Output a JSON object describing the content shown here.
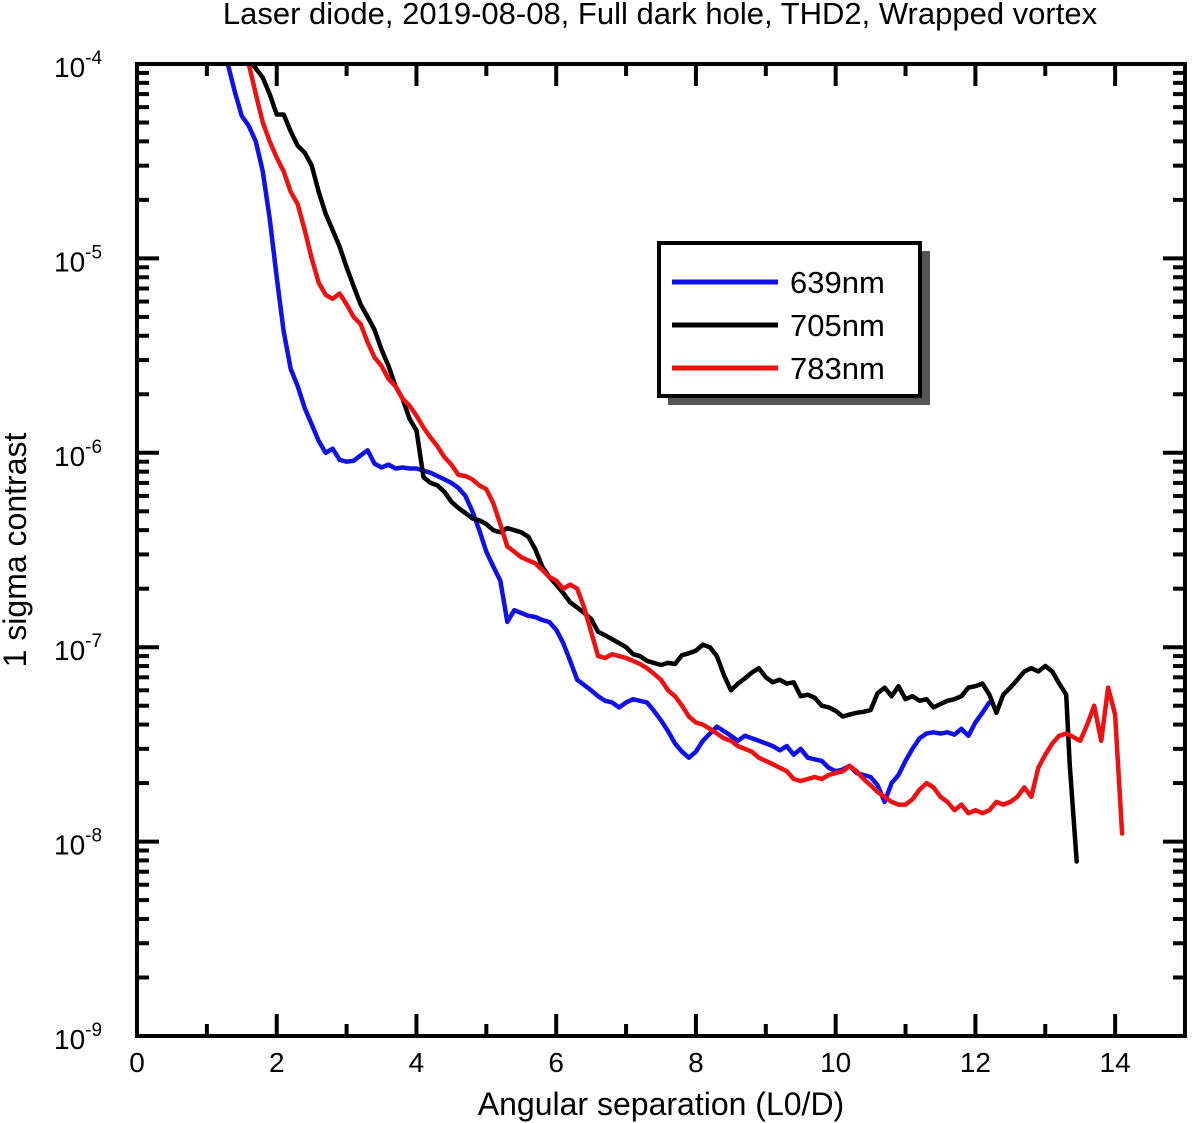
{
  "chart_data": {
    "type": "line",
    "title": "Laser diode, 2019-08-08, Full dark hole, THD2, Wrapped vortex",
    "xlabel": "Angular separation (L0/D)",
    "ylabel": "1 sigma contrast",
    "xlim": [
      0,
      15
    ],
    "ylim": [
      1e-09,
      0.0001
    ],
    "yscale": "log",
    "x_ticks": [
      0,
      2,
      4,
      6,
      8,
      10,
      12,
      14
    ],
    "x_tick_labels": [
      "0",
      "2",
      "4",
      "6",
      "8",
      "10",
      "12",
      "14"
    ],
    "y_ticks": [
      {
        "value": 0.0001,
        "base": "10",
        "exp": "-4"
      },
      {
        "value": 1e-05,
        "base": "10",
        "exp": "-5"
      },
      {
        "value": 1e-06,
        "base": "10",
        "exp": "-6"
      },
      {
        "value": 1e-07,
        "base": "10",
        "exp": "-7"
      },
      {
        "value": 1e-08,
        "base": "10",
        "exp": "-8"
      },
      {
        "value": 1e-09,
        "base": "10",
        "exp": "-9"
      }
    ],
    "legend_position": "upper-right",
    "series": [
      {
        "name": "639nm",
        "color": "#1010e8",
        "x": [
          1.3,
          1.4,
          1.5,
          1.6,
          1.7,
          1.8,
          1.9,
          2.0,
          2.1,
          2.2,
          2.3,
          2.4,
          2.5,
          2.6,
          2.7,
          2.8,
          2.9,
          3.0,
          3.1,
          3.2,
          3.3,
          3.4,
          3.5,
          3.6,
          3.7,
          3.8,
          3.9,
          4.0,
          4.1,
          4.2,
          4.3,
          4.4,
          4.5,
          4.6,
          4.7,
          4.8,
          4.9,
          5.0,
          5.1,
          5.2,
          5.3,
          5.4,
          5.5,
          5.6,
          5.7,
          5.8,
          5.9,
          6.0,
          6.1,
          6.2,
          6.3,
          6.4,
          6.5,
          6.6,
          6.7,
          6.8,
          6.9,
          7.0,
          7.1,
          7.2,
          7.3,
          7.4,
          7.5,
          7.6,
          7.7,
          7.8,
          7.9,
          8.0,
          8.1,
          8.2,
          8.3,
          8.4,
          8.5,
          8.6,
          8.7,
          8.8,
          8.9,
          9.0,
          9.1,
          9.2,
          9.3,
          9.4,
          9.5,
          9.6,
          9.7,
          9.8,
          9.9,
          10.0,
          10.1,
          10.2,
          10.3,
          10.4,
          10.5,
          10.6,
          10.7,
          10.8,
          10.9,
          11.0,
          11.1,
          11.2,
          11.3,
          11.4,
          11.5,
          11.6,
          11.7,
          11.8,
          11.9,
          12.0,
          12.1,
          12.2
        ],
        "values": [
          0.0001,
          7.2e-05,
          5.4e-05,
          4.8e-05,
          4e-05,
          2.8e-05,
          1.6e-05,
          8e-06,
          4.2e-06,
          2.7e-06,
          2.2e-06,
          1.7e-06,
          1.4e-06,
          1.15e-06,
          1e-06,
          1.05e-06,
          9.2e-07,
          9e-07,
          9.1e-07,
          9.7e-07,
          1.03e-06,
          8.8e-07,
          8.4e-07,
          8.7e-07,
          8.3e-07,
          8.4e-07,
          8.3e-07,
          8.3e-07,
          8.1e-07,
          7.9e-07,
          7.6e-07,
          7.3e-07,
          7e-07,
          6.6e-07,
          6e-07,
          5e-07,
          4e-07,
          3.1e-07,
          2.6e-07,
          2.2e-07,
          1.35e-07,
          1.55e-07,
          1.5e-07,
          1.45e-07,
          1.43e-07,
          1.38e-07,
          1.35e-07,
          1.23e-07,
          1.05e-07,
          8.5e-08,
          6.8e-08,
          6.4e-08,
          6e-08,
          5.6e-08,
          5.3e-08,
          5.2e-08,
          4.9e-08,
          5.2e-08,
          5.4e-08,
          5.3e-08,
          5.2e-08,
          4.7e-08,
          4.2e-08,
          3.7e-08,
          3.2e-08,
          2.9e-08,
          2.7e-08,
          2.9e-08,
          3.3e-08,
          3.6e-08,
          3.9e-08,
          3.7e-08,
          3.5e-08,
          3.3e-08,
          3.5e-08,
          3.4e-08,
          3.3e-08,
          3.2e-08,
          3.1e-08,
          2.95e-08,
          3.1e-08,
          2.8e-08,
          3e-08,
          2.7e-08,
          2.65e-08,
          2.6e-08,
          2.4e-08,
          2.3e-08,
          2.35e-08,
          2.45e-08,
          2.25e-08,
          2.2e-08,
          2.15e-08,
          1.95e-08,
          1.6e-08,
          2e-08,
          2.2e-08,
          2.6e-08,
          3e-08,
          3.4e-08,
          3.6e-08,
          3.65e-08,
          3.6e-08,
          3.65e-08,
          3.55e-08,
          3.8e-08,
          3.5e-08,
          4.1e-08,
          4.6e-08,
          5.2e-08
        ]
      },
      {
        "name": "705nm",
        "color": "#000000",
        "x": [
          1.65,
          1.7,
          1.8,
          1.9,
          2.0,
          2.1,
          2.2,
          2.3,
          2.4,
          2.5,
          2.6,
          2.7,
          2.8,
          2.9,
          3.0,
          3.1,
          3.2,
          3.3,
          3.4,
          3.5,
          3.6,
          3.7,
          3.8,
          3.9,
          4.0,
          4.1,
          4.2,
          4.3,
          4.4,
          4.5,
          4.6,
          4.7,
          4.8,
          4.9,
          5.0,
          5.1,
          5.2,
          5.3,
          5.4,
          5.5,
          5.6,
          5.7,
          5.8,
          5.9,
          6.0,
          6.1,
          6.2,
          6.3,
          6.4,
          6.5,
          6.6,
          6.7,
          6.8,
          6.9,
          7.0,
          7.1,
          7.2,
          7.3,
          7.4,
          7.5,
          7.6,
          7.7,
          7.8,
          7.9,
          8.0,
          8.1,
          8.2,
          8.3,
          8.4,
          8.5,
          8.6,
          8.7,
          8.8,
          8.9,
          9.0,
          9.1,
          9.2,
          9.3,
          9.4,
          9.5,
          9.6,
          9.7,
          9.8,
          9.9,
          10.0,
          10.1,
          10.2,
          10.3,
          10.4,
          10.5,
          10.6,
          10.7,
          10.8,
          10.9,
          11.0,
          11.1,
          11.2,
          11.3,
          11.4,
          11.5,
          11.6,
          11.7,
          11.8,
          11.9,
          12.0,
          12.1,
          12.2,
          12.3,
          12.4,
          12.5,
          12.6,
          12.7,
          12.8,
          12.9,
          13.0,
          13.1,
          13.2,
          13.3,
          13.35,
          13.45
        ],
        "values": [
          0.0001,
          9.5e-05,
          8.5e-05,
          7e-05,
          5.5e-05,
          5.5e-05,
          4.5e-05,
          3.8e-05,
          3.5e-05,
          3e-05,
          2.2e-05,
          1.7e-05,
          1.4e-05,
          1.15e-05,
          9e-06,
          7.2e-06,
          5.8e-06,
          5e-06,
          4.3e-06,
          3.4e-06,
          2.8e-06,
          2.2e-06,
          1.9e-06,
          1.5e-06,
          1.3e-06,
          7.5e-07,
          7e-07,
          6.8e-07,
          6.3e-07,
          5.6e-07,
          5.2e-07,
          4.9e-07,
          4.6e-07,
          4.5e-07,
          4.3e-07,
          4e-07,
          3.9e-07,
          4.1e-07,
          4e-07,
          3.9e-07,
          3.7e-07,
          3.2e-07,
          2.6e-07,
          2.3e-07,
          2.1e-07,
          1.9e-07,
          1.7e-07,
          1.6e-07,
          1.5e-07,
          1.4e-07,
          1.2e-07,
          1.15e-07,
          1.1e-07,
          1.05e-07,
          1e-07,
          9.2e-08,
          9e-08,
          8.5e-08,
          8.3e-08,
          8.1e-08,
          8.3e-08,
          8.2e-08,
          9.1e-08,
          9.3e-08,
          9.6e-08,
          1.03e-07,
          1e-07,
          9e-08,
          7.2e-08,
          6e-08,
          6.5e-08,
          6.9e-08,
          7.4e-08,
          7.8e-08,
          7e-08,
          6.6e-08,
          6.8e-08,
          6.5e-08,
          6.6e-08,
          5.6e-08,
          5.7e-08,
          5.5e-08,
          5e-08,
          4.9e-08,
          4.7e-08,
          4.4e-08,
          4.5e-08,
          4.6e-08,
          4.65e-08,
          4.75e-08,
          5.8e-08,
          6.2e-08,
          5.6e-08,
          6.3e-08,
          5.4e-08,
          5.6e-08,
          5.3e-08,
          5.4e-08,
          4.9e-08,
          5.1e-08,
          5.3e-08,
          5.4e-08,
          5.6e-08,
          6.2e-08,
          6.3e-08,
          6.5e-08,
          5.7e-08,
          4.6e-08,
          5.7e-08,
          6.2e-08,
          6.8e-08,
          7.5e-08,
          7.8e-08,
          7.5e-08,
          8e-08,
          7.5e-08,
          6.5e-08,
          5.7e-08,
          2.5e-08,
          7.9e-09
        ]
      },
      {
        "name": "783nm",
        "color": "#ee1111",
        "x": [
          1.6,
          1.7,
          1.8,
          1.9,
          2.0,
          2.1,
          2.2,
          2.3,
          2.4,
          2.5,
          2.6,
          2.7,
          2.8,
          2.9,
          3.0,
          3.1,
          3.2,
          3.3,
          3.4,
          3.5,
          3.6,
          3.7,
          3.8,
          3.9,
          4.0,
          4.1,
          4.2,
          4.3,
          4.4,
          4.5,
          4.6,
          4.7,
          4.8,
          4.9,
          5.0,
          5.1,
          5.2,
          5.3,
          5.4,
          5.5,
          5.6,
          5.7,
          5.8,
          5.9,
          6.0,
          6.1,
          6.2,
          6.3,
          6.4,
          6.5,
          6.6,
          6.7,
          6.8,
          6.9,
          7.0,
          7.1,
          7.2,
          7.3,
          7.4,
          7.5,
          7.6,
          7.7,
          7.8,
          7.9,
          8.0,
          8.1,
          8.2,
          8.3,
          8.4,
          8.5,
          8.6,
          8.7,
          8.8,
          8.9,
          9.0,
          9.1,
          9.2,
          9.3,
          9.4,
          9.5,
          9.6,
          9.7,
          9.8,
          9.9,
          10.0,
          10.1,
          10.2,
          10.3,
          10.4,
          10.5,
          10.6,
          10.7,
          10.8,
          10.9,
          11.0,
          11.1,
          11.2,
          11.3,
          11.4,
          11.5,
          11.6,
          11.7,
          11.8,
          11.9,
          12.0,
          12.1,
          12.2,
          12.3,
          12.4,
          12.5,
          12.6,
          12.7,
          12.8,
          12.9,
          13.0,
          13.1,
          13.2,
          13.3,
          13.4,
          13.5,
          13.6,
          13.7,
          13.8,
          13.9,
          14.0,
          14.1
        ],
        "values": [
          0.0001,
          7e-05,
          5e-05,
          4e-05,
          3.3e-05,
          2.8e-05,
          2.2e-05,
          1.9e-05,
          1.4e-05,
          1e-05,
          7.5e-06,
          6.5e-06,
          6.2e-06,
          6.6e-06,
          5.8e-06,
          5e-06,
          4.6e-06,
          3.7e-06,
          3.1e-06,
          2.8e-06,
          2.4e-06,
          2.2e-06,
          1.9e-06,
          1.75e-06,
          1.55e-06,
          1.35e-06,
          1.2e-06,
          1.08e-06,
          9.5e-07,
          8.7e-07,
          7.7e-07,
          7.6e-07,
          7.3e-07,
          6.8e-07,
          6.5e-07,
          5.5e-07,
          4.3e-07,
          3.3e-07,
          3.1e-07,
          2.9e-07,
          2.8e-07,
          2.7e-07,
          2.5e-07,
          2.3e-07,
          2.2e-07,
          2e-07,
          2.1e-07,
          2e-07,
          1.6e-07,
          1.2e-07,
          9e-08,
          8.8e-08,
          9.2e-08,
          9e-08,
          8.8e-08,
          8.5e-08,
          8.2e-08,
          7.8e-08,
          7.3e-08,
          6.8e-08,
          6e-08,
          5.6e-08,
          5e-08,
          4.4e-08,
          4.1e-08,
          4e-08,
          3.8e-08,
          3.6e-08,
          3.4e-08,
          3.3e-08,
          3.1e-08,
          3e-08,
          2.9e-08,
          2.7e-08,
          2.6e-08,
          2.5e-08,
          2.4e-08,
          2.3e-08,
          2.1e-08,
          2.05e-08,
          2.1e-08,
          2.15e-08,
          2.1e-08,
          2.2e-08,
          2.25e-08,
          2.3e-08,
          2.45e-08,
          2.3e-08,
          2.1e-08,
          1.95e-08,
          1.8e-08,
          1.7e-08,
          1.6e-08,
          1.55e-08,
          1.55e-08,
          1.65e-08,
          1.85e-08,
          2e-08,
          1.9e-08,
          1.7e-08,
          1.6e-08,
          1.45e-08,
          1.55e-08,
          1.4e-08,
          1.45e-08,
          1.4e-08,
          1.45e-08,
          1.6e-08,
          1.55e-08,
          1.6e-08,
          1.7e-08,
          1.9e-08,
          1.7e-08,
          2.4e-08,
          2.8e-08,
          3.2e-08,
          3.5e-08,
          3.6e-08,
          3.45e-08,
          3.3e-08,
          4e-08,
          5e-08,
          3.3e-08,
          6.2e-08,
          4.5e-08,
          1.1e-08
        ]
      }
    ]
  }
}
